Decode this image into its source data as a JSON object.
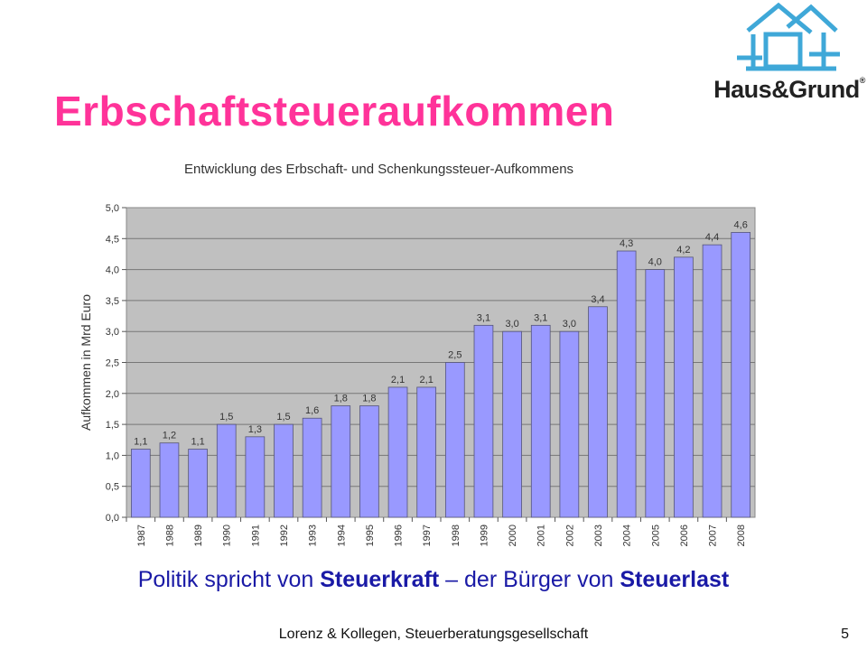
{
  "slide": {
    "title": "Erbschaftsteueraufkommen",
    "caption_parts": [
      "Politik spricht von ",
      "Steuerkraft",
      " – der Bürger von ",
      "Steuerlast"
    ],
    "footer": "Lorenz & Kollegen, Steuerberatungsgesellschaft",
    "page_number": "5",
    "title_color": "#ff3399",
    "caption_color": "#1a1aa6"
  },
  "logo": {
    "text": "Haus&Grund",
    "mark": "®",
    "icon": "house-outline-icon",
    "color": "#3fa8d8"
  },
  "chart_data": {
    "type": "bar",
    "title": "Entwicklung des Erbschaft- und Schenkungssteuer-Aufkommens",
    "xlabel": "",
    "ylabel": "Aufkommen in Mrd Euro",
    "categories": [
      "1987",
      "1988",
      "1989",
      "1990",
      "1991",
      "1992",
      "1993",
      "1994",
      "1995",
      "1996",
      "1997",
      "1998",
      "1999",
      "2000",
      "2001",
      "2002",
      "2003",
      "2004",
      "2005",
      "2006",
      "2007",
      "2008"
    ],
    "values": [
      1.1,
      1.2,
      1.1,
      1.5,
      1.3,
      1.5,
      1.6,
      1.8,
      1.8,
      2.1,
      2.1,
      2.5,
      3.1,
      3.0,
      3.1,
      3.0,
      3.4,
      4.3,
      4.0,
      4.2,
      4.4,
      4.6
    ],
    "value_labels": [
      "1,1",
      "1,2",
      "1,1",
      "1,5",
      "1,3",
      "1,5",
      "1,6",
      "1,8",
      "1,8",
      "2,1",
      "2,1",
      "2,5",
      "3,1",
      "3,0",
      "3,1",
      "3,0",
      "3,4",
      "4,3",
      "4,0",
      "4,2",
      "4,4",
      "4,6"
    ],
    "yticks": [
      "0,0",
      "0,5",
      "1,0",
      "1,5",
      "2,0",
      "2,5",
      "3,0",
      "3,5",
      "4,0",
      "4,5",
      "5,0"
    ],
    "ylim": [
      0,
      5
    ],
    "grid": true,
    "bar_color": "#9999ff",
    "plot_background": "#c0c0c0",
    "legend": "none"
  }
}
